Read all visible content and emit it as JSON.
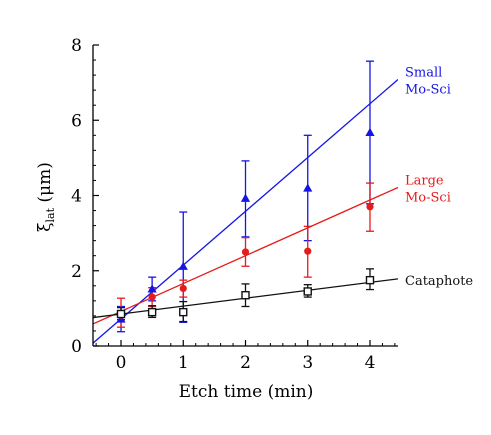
{
  "chart_data": {
    "type": "scatter",
    "xlabel": "Etch time (min)",
    "ylabel": {
      "symbol": "ξ",
      "subscript": "lat",
      "unit": " (μm)"
    },
    "xlim": [
      -0.45,
      4.45
    ],
    "ylim": [
      0,
      8
    ],
    "xticks": [
      0,
      1,
      2,
      3,
      4
    ],
    "yticks": [
      0,
      2,
      4,
      6,
      8
    ],
    "grid": false,
    "legend": "inline labels at right end of fit lines",
    "series": [
      {
        "name": "Small Mo-Sci",
        "label_lines": [
          "Small",
          "Mo-Sci"
        ],
        "color": "#1515e6",
        "marker": "triangle",
        "points": [
          {
            "x": 0.0,
            "y": 0.72,
            "ylo": 0.38,
            "yhi": 1.05
          },
          {
            "x": 0.5,
            "y": 1.52,
            "ylo": 1.2,
            "yhi": 1.83
          },
          {
            "x": 1.0,
            "y": 2.12,
            "ylo": 0.63,
            "yhi": 3.56
          },
          {
            "x": 2.0,
            "y": 3.93,
            "ylo": 2.9,
            "yhi": 4.92
          },
          {
            "x": 3.0,
            "y": 4.2,
            "ylo": 2.8,
            "yhi": 5.6
          },
          {
            "x": 4.0,
            "y": 5.68,
            "ylo": 3.78,
            "yhi": 7.57
          }
        ],
        "fit": {
          "intercept": 0.72,
          "slope": 1.43
        }
      },
      {
        "name": "Large Mo-Sci",
        "label_lines": [
          "Large",
          "Mo-Sci"
        ],
        "color": "#e61c1c",
        "marker": "circle",
        "points": [
          {
            "x": 0.0,
            "y": 0.82,
            "ylo": 0.5,
            "yhi": 1.27
          },
          {
            "x": 0.5,
            "y": 1.3,
            "ylo": 1.05,
            "yhi": 1.55
          },
          {
            "x": 1.0,
            "y": 1.53,
            "ylo": 1.3,
            "yhi": 1.75
          },
          {
            "x": 2.0,
            "y": 2.5,
            "ylo": 2.12,
            "yhi": 2.88
          },
          {
            "x": 3.0,
            "y": 2.52,
            "ylo": 1.83,
            "yhi": 3.18
          },
          {
            "x": 4.0,
            "y": 3.7,
            "ylo": 3.05,
            "yhi": 4.33
          }
        ],
        "fit": {
          "intercept": 0.92,
          "slope": 0.74
        }
      },
      {
        "name": "Cataphote",
        "label_lines": [
          "Cataphote"
        ],
        "color": "#111111",
        "marker": "square",
        "points": [
          {
            "x": 0.0,
            "y": 0.85,
            "ylo": 0.7,
            "yhi": 1.02
          },
          {
            "x": 0.5,
            "y": 0.9,
            "ylo": 0.76,
            "yhi": 1.07
          },
          {
            "x": 1.0,
            "y": 0.9,
            "ylo": 0.65,
            "yhi": 1.18
          },
          {
            "x": 2.0,
            "y": 1.35,
            "ylo": 1.05,
            "yhi": 1.65
          },
          {
            "x": 3.0,
            "y": 1.45,
            "ylo": 1.3,
            "yhi": 1.63
          },
          {
            "x": 4.0,
            "y": 1.75,
            "ylo": 1.5,
            "yhi": 2.05
          }
        ],
        "fit": {
          "intercept": 0.85,
          "slope": 0.21
        }
      }
    ]
  }
}
